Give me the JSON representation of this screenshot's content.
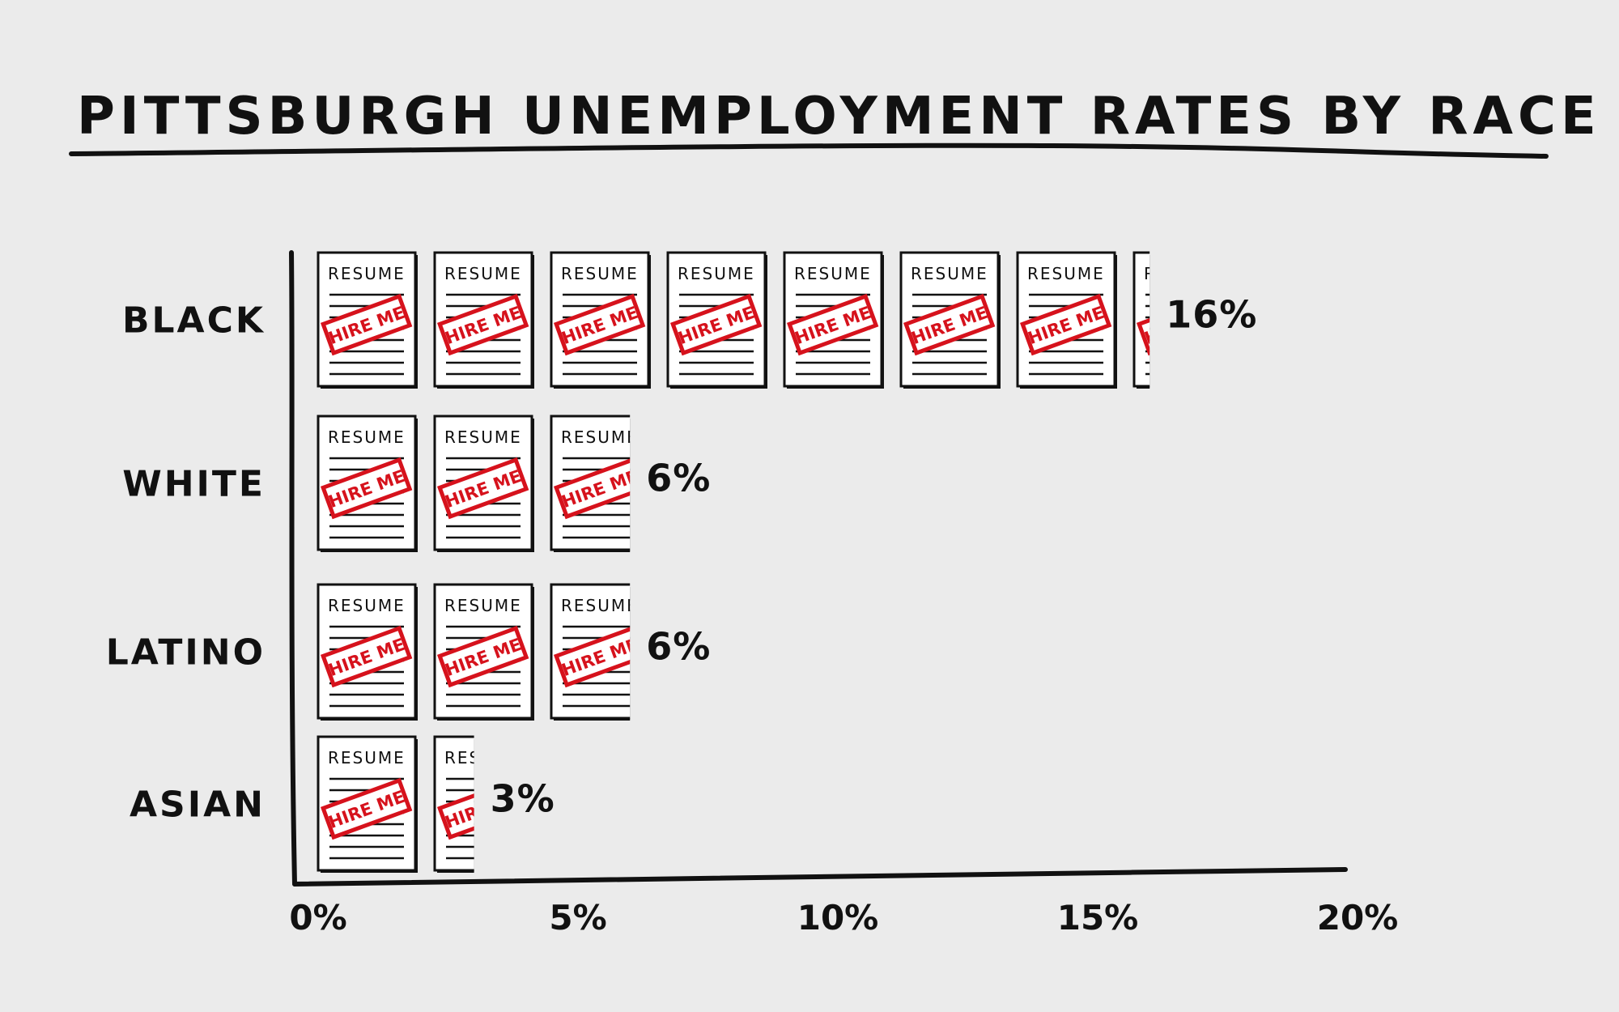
{
  "chart_data": {
    "type": "bar",
    "orientation": "horizontal",
    "title": "PITTSBURGH UNEMPLOYMENT RATES BY RACE",
    "categories": [
      "BLACK",
      "WHITE",
      "LATINO",
      "ASIAN"
    ],
    "values": [
      16,
      6,
      6,
      3
    ],
    "value_labels": [
      "16%",
      "6%",
      "6%",
      "3%"
    ],
    "unit": "%",
    "xlim": [
      0,
      20
    ],
    "xticks": [
      0,
      5,
      10,
      15,
      20
    ],
    "xtick_labels": [
      "0%",
      "5%",
      "10%",
      "15%",
      "20%"
    ],
    "grid": false,
    "legend": "none",
    "icon": {
      "name": "resume-icon",
      "header_text": "RESUME",
      "stamp_text": "HIRE ME",
      "value_per_icon": 2.25
    },
    "colors": {
      "background": "#ebebeb",
      "ink": "#111111",
      "stamp": "#d6121c",
      "paper": "#ffffff"
    }
  }
}
